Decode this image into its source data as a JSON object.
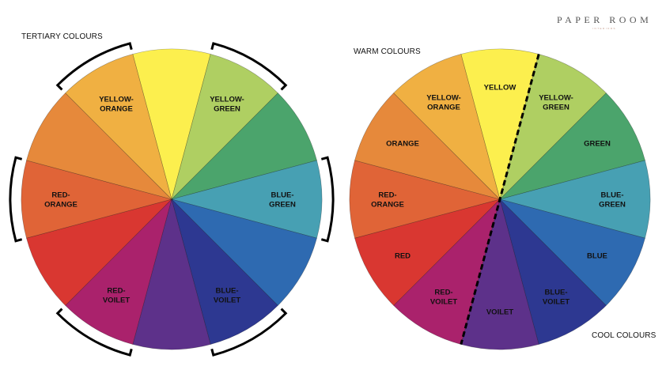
{
  "logo": {
    "main": "PAPER ROOM",
    "sub": "INTERIORS"
  },
  "left_wheel": {
    "title": "TERTIARY COLOURS",
    "bracketed": [
      "yellow-orange",
      "yellow-green",
      "blue-green",
      "blue-violet",
      "red-violet",
      "red-orange"
    ]
  },
  "right_wheel": {
    "warm_label": "WARM COLOURS",
    "cool_label": "COOL COLOURS"
  },
  "segments": [
    {
      "id": "yellow",
      "color": "#FCEF4E",
      "left_label": [],
      "right_label": [
        "YELLOW"
      ]
    },
    {
      "id": "yellow-green",
      "color": "#AFCF62",
      "left_label": [
        "YELLOW-",
        "GREEN"
      ],
      "right_label": [
        "YELLOW-",
        "GREEN"
      ]
    },
    {
      "id": "green",
      "color": "#4BA46C",
      "left_label": [],
      "right_label": [
        "GREEN"
      ]
    },
    {
      "id": "blue-green",
      "color": "#47A0B3",
      "left_label": [
        "BLUE-",
        "GREEN"
      ],
      "right_label": [
        "BLUE-",
        "GREEN"
      ]
    },
    {
      "id": "blue",
      "color": "#2E6AB1",
      "left_label": [],
      "right_label": [
        "BLUE"
      ]
    },
    {
      "id": "blue-violet",
      "color": "#2D3891",
      "left_label": [
        "BLUE-",
        "VOILET"
      ],
      "right_label": [
        "BLUE-",
        "VOILET"
      ]
    },
    {
      "id": "violet",
      "color": "#5D318A",
      "left_label": [],
      "right_label": [
        "VOILET"
      ]
    },
    {
      "id": "red-violet",
      "color": "#AA226C",
      "left_label": [
        "RED-",
        "VOILET"
      ],
      "right_label": [
        "RED-",
        "VOILET"
      ]
    },
    {
      "id": "red",
      "color": "#D93731",
      "left_label": [],
      "right_label": [
        "RED"
      ]
    },
    {
      "id": "red-orange",
      "color": "#E06437",
      "left_label": [
        "RED-",
        "ORANGE"
      ],
      "right_label": [
        "RED-",
        "ORANGE"
      ]
    },
    {
      "id": "orange",
      "color": "#E6893B",
      "left_label": [],
      "right_label": [
        "ORANGE"
      ]
    },
    {
      "id": "yellow-orange",
      "color": "#F0B042",
      "left_label": [
        "YELLOW-",
        "ORANGE"
      ],
      "right_label": [
        "YELLOW-",
        "ORANGE"
      ]
    }
  ]
}
